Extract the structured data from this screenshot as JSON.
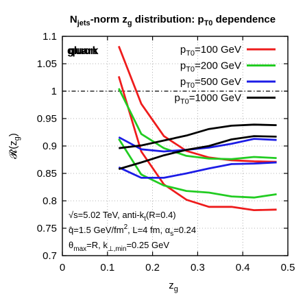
{
  "chart_data": {
    "type": "line",
    "title_parts": [
      {
        "text": "N",
        "shift": "base"
      },
      {
        "text": "jets",
        "shift": "sub"
      },
      {
        "text": "-norm z",
        "shift": "base"
      },
      {
        "text": "g",
        "shift": "sub"
      },
      {
        "text": " distribution: p",
        "shift": "base"
      },
      {
        "text": "T0",
        "shift": "sub"
      },
      {
        "text": " dependence",
        "shift": "base"
      }
    ],
    "xlabel": "z",
    "xlabel_sub": "g",
    "ylabel": "𝓡(z",
    "ylabel_sub": "g",
    "ylabel_close": ")",
    "xlim": [
      0,
      0.5
    ],
    "ylim": [
      0.7,
      1.1
    ],
    "xticks": [
      "0",
      "0.1",
      "0.2",
      "0.3",
      "0.4",
      "0.5"
    ],
    "xtick_values": [
      0,
      0.1,
      0.2,
      0.3,
      0.4,
      0.5
    ],
    "yticks": [
      "0.7",
      "0.75",
      "0.8",
      "0.85",
      "0.9",
      "0.95",
      "1",
      "1.05",
      "1.1"
    ],
    "ytick_values": [
      0.7,
      0.75,
      0.8,
      0.85,
      0.9,
      0.95,
      1.0,
      1.05,
      1.1
    ],
    "grid": true,
    "reference_line": 1.0,
    "overlay_labels": [
      "gluon",
      "quark"
    ],
    "legend_placement": "top-right",
    "legend": [
      {
        "pre": "p",
        "sub": "T0",
        "post": "=100 GeV",
        "color": "#ee1c1c"
      },
      {
        "pre": "p",
        "sub": "T0",
        "post": "=200 GeV",
        "color": "#22cc22"
      },
      {
        "pre": "p",
        "sub": "T0",
        "post": "=500 GeV",
        "color": "#1c1ce6"
      },
      {
        "pre": "p",
        "sub": "T0",
        "post": "=1000 GeV",
        "color": "#000000"
      }
    ],
    "x": [
      0.125,
      0.175,
      0.225,
      0.275,
      0.325,
      0.375,
      0.425,
      0.475
    ],
    "series": [
      {
        "label": "pT0=100 GeV, gluon",
        "color": "#ee1c1c",
        "values": [
          1.027,
          0.89,
          0.83,
          0.802,
          0.789,
          0.789,
          0.783,
          0.784
        ]
      },
      {
        "label": "pT0=100 GeV, quark",
        "color": "#ee1c1c",
        "values": [
          1.082,
          0.977,
          0.918,
          0.891,
          0.879,
          0.874,
          0.872,
          0.871
        ]
      },
      {
        "label": "pT0=200 GeV, gluon",
        "color": "#22cc22",
        "values": [
          0.913,
          0.848,
          0.828,
          0.818,
          0.815,
          0.808,
          0.806,
          0.812
        ]
      },
      {
        "label": "pT0=200 GeV, quark",
        "color": "#22cc22",
        "values": [
          1.005,
          0.922,
          0.896,
          0.882,
          0.877,
          0.876,
          0.88,
          0.878
        ]
      },
      {
        "label": "pT0=500 GeV, gluon",
        "color": "#1c1ce6",
        "values": [
          0.861,
          0.842,
          0.842,
          0.85,
          0.859,
          0.867,
          0.868,
          0.87
        ]
      },
      {
        "label": "pT0=500 GeV, quark",
        "color": "#1c1ce6",
        "values": [
          0.916,
          0.894,
          0.89,
          0.893,
          0.897,
          0.904,
          0.913,
          0.911
        ]
      },
      {
        "label": "pT0=1000 GeV, gluon",
        "color": "#000000",
        "values": [
          0.858,
          0.87,
          0.883,
          0.893,
          0.9,
          0.912,
          0.918,
          0.917
        ]
      },
      {
        "label": "pT0=1000 GeV, quark",
        "color": "#000000",
        "values": [
          0.896,
          0.901,
          0.91,
          0.919,
          0.931,
          0.937,
          0.939,
          0.938
        ]
      }
    ],
    "info_lines": [
      [
        {
          "text": "√s=5.02 TeV, anti-k",
          "shift": "base"
        },
        {
          "text": "t",
          "shift": "sub"
        },
        {
          "text": "(R=0.4)",
          "shift": "base"
        }
      ],
      [
        {
          "text": "q̂=1.5 GeV/fm",
          "shift": "base"
        },
        {
          "text": "2",
          "shift": "sup"
        },
        {
          "text": ", L=4 fm, α",
          "shift": "base"
        },
        {
          "text": "s",
          "shift": "sub"
        },
        {
          "text": "=0.24",
          "shift": "base"
        }
      ],
      [
        {
          "text": "θ",
          "shift": "base"
        },
        {
          "text": "max",
          "shift": "sub"
        },
        {
          "text": "=R, k",
          "shift": "base"
        },
        {
          "text": "⊥,min",
          "shift": "sub"
        },
        {
          "text": "=0.25 GeV",
          "shift": "base"
        }
      ]
    ]
  }
}
